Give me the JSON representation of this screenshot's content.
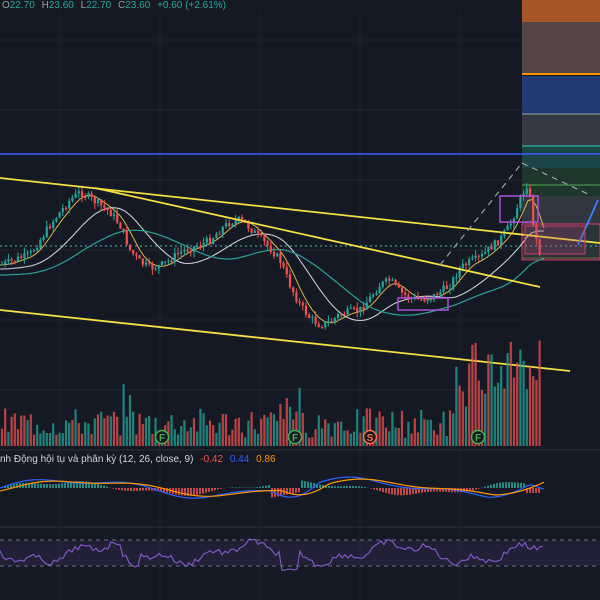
{
  "ohlc": {
    "open_label": "O",
    "open": "22.70",
    "high_label": "H",
    "high": "23.60",
    "low_label": "L",
    "low": "22.70",
    "close_label": "C",
    "close": "23.60",
    "change": "+0.60 (+2.61%)"
  },
  "markers": [
    "F",
    "F",
    "S",
    "F"
  ],
  "macd": {
    "title": "nh Động hội tụ và phân kỳ (12, 26, close, 9)",
    "hist": "-0.42",
    "macd": "0.44",
    "signal": "0.86"
  },
  "colors": {
    "background": "#151924",
    "up": "#26a69a",
    "down": "#ef5350",
    "trendline": "#f5e042",
    "ma_white": "#c9ccd3",
    "ma_teal": "#2aa198",
    "macd_line": "#2962ff",
    "signal_line": "#ff9800",
    "rsi": "#7e57c2"
  },
  "chart_data": {
    "type": "candlestick",
    "description_source": "stock price chart with volume, MACD (12,26,9) and RSI panels",
    "series": [
      {
        "name": "O",
        "values": [
          22.7
        ]
      },
      {
        "name": "H",
        "values": [
          23.6
        ]
      },
      {
        "name": "L",
        "values": [
          22.7
        ]
      },
      {
        "name": "C",
        "values": [
          23.6
        ]
      }
    ],
    "macd_values": {
      "histogram": -0.42,
      "macd": 0.44,
      "signal": 0.86
    }
  }
}
